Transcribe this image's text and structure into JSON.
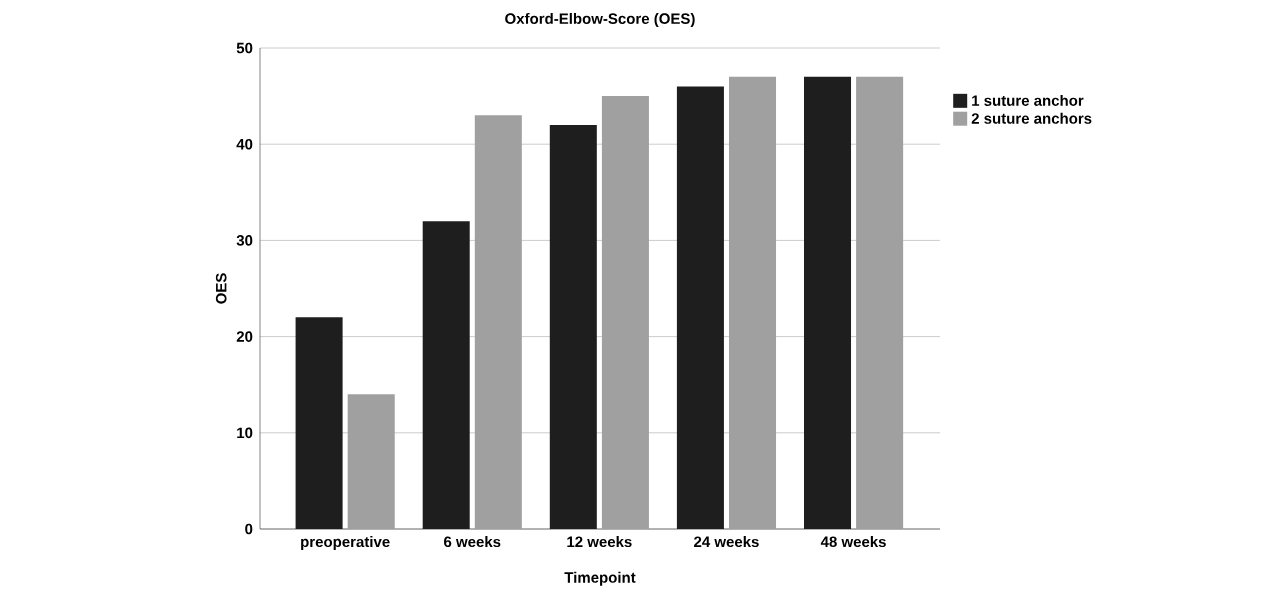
{
  "chart_data": {
    "type": "bar",
    "title": "Oxford-Elbow-Score (OES)",
    "xlabel": "Timepoint",
    "ylabel": "OES",
    "categories": [
      "preoperative",
      "6 weeks",
      "12 weeks",
      "24 weeks",
      "48 weeks"
    ],
    "series": [
      {
        "name": "1 suture anchor",
        "color": "#1e1e1e",
        "values": [
          22,
          32,
          42,
          46,
          47
        ]
      },
      {
        "name": "2 suture anchors",
        "color": "#a0a0a0",
        "values": [
          14,
          43,
          45,
          47,
          47
        ]
      }
    ],
    "ylim": [
      0,
      50
    ],
    "yticks": [
      0,
      10,
      20,
      30,
      40,
      50
    ],
    "grid": "y",
    "legend": "right"
  }
}
